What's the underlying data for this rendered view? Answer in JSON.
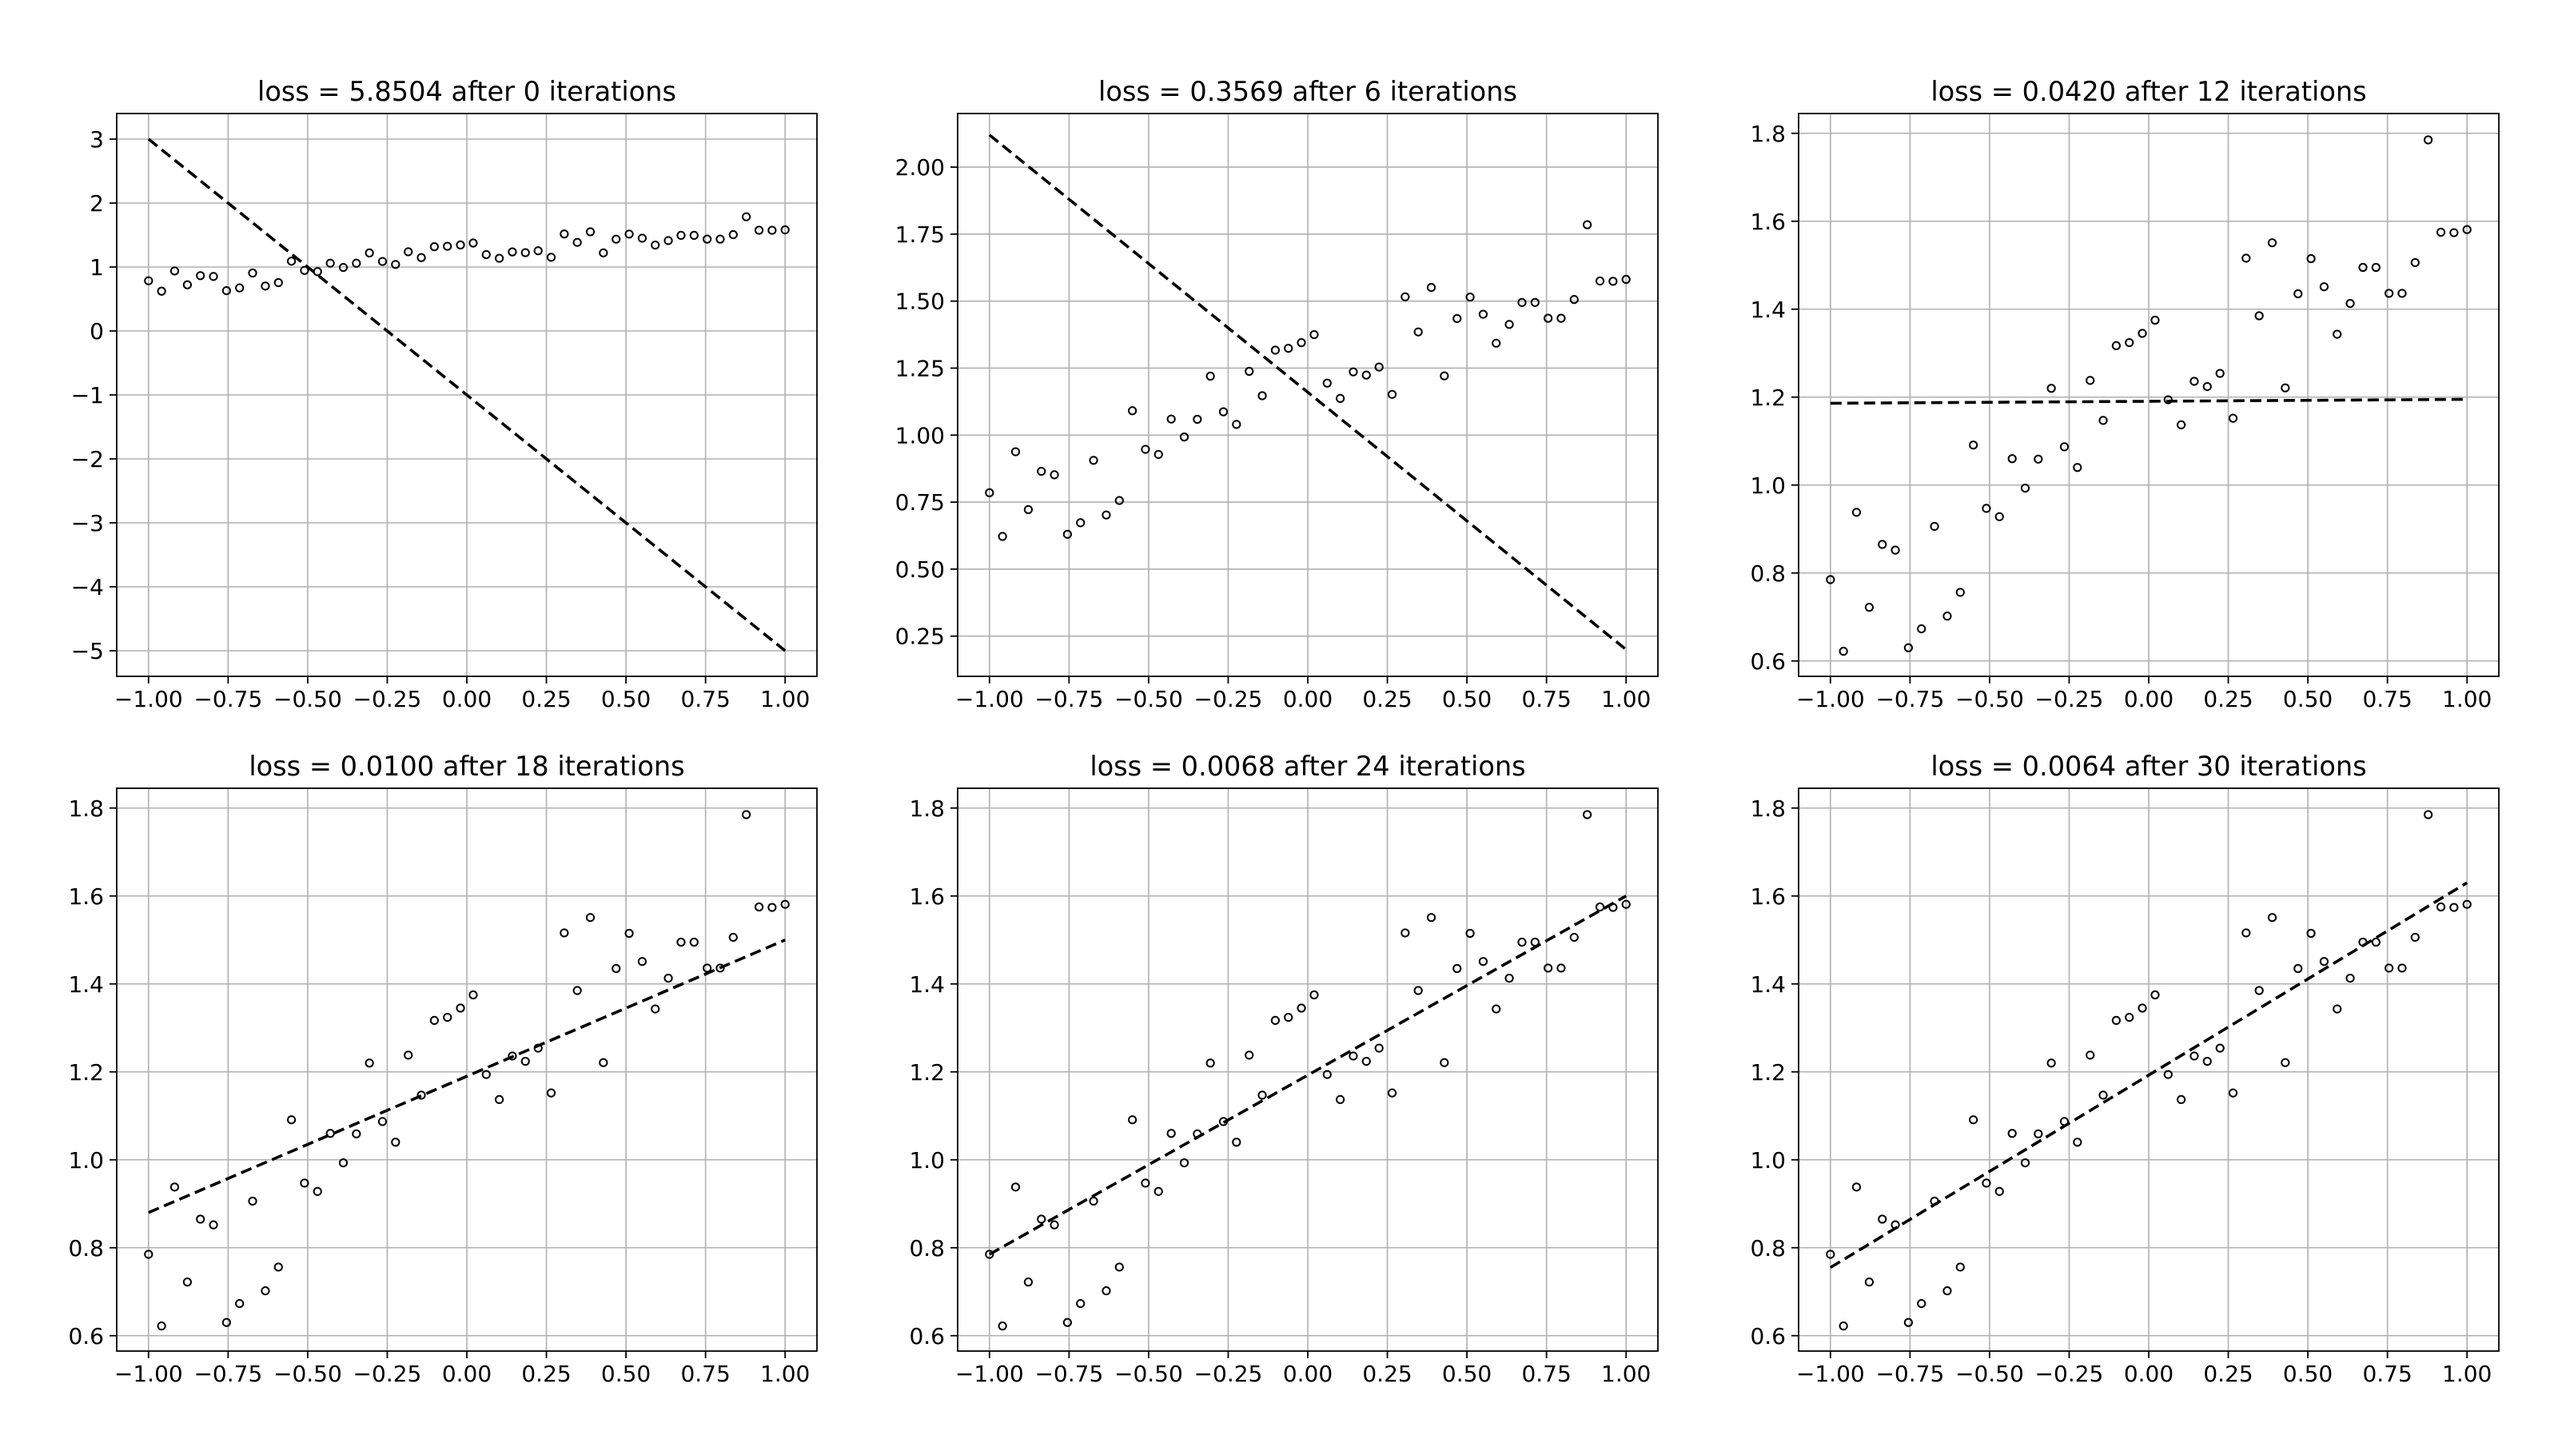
{
  "scatter_points": {
    "x": [
      -1.0,
      -0.959,
      -0.918,
      -0.878,
      -0.837,
      -0.796,
      -0.755,
      -0.714,
      -0.673,
      -0.633,
      -0.592,
      -0.551,
      -0.51,
      -0.469,
      -0.429,
      -0.388,
      -0.347,
      -0.306,
      -0.265,
      -0.224,
      -0.184,
      -0.143,
      -0.102,
      -0.061,
      -0.02,
      0.02,
      0.061,
      0.102,
      0.143,
      0.184,
      0.224,
      0.265,
      0.306,
      0.347,
      0.388,
      0.429,
      0.469,
      0.51,
      0.551,
      0.592,
      0.633,
      0.673,
      0.714,
      0.755,
      0.796,
      0.837,
      0.878,
      0.918,
      0.959,
      1.0
    ],
    "y": [
      0.785,
      0.622,
      0.938,
      0.722,
      0.865,
      0.852,
      0.63,
      0.673,
      0.906,
      0.702,
      0.756,
      1.091,
      0.947,
      0.928,
      1.06,
      0.993,
      1.059,
      1.22,
      1.087,
      1.04,
      1.238,
      1.147,
      1.317,
      1.324,
      1.345,
      1.375,
      1.194,
      1.137,
      1.236,
      1.224,
      1.254,
      1.152,
      1.516,
      1.385,
      1.551,
      1.221,
      1.435,
      1.515,
      1.451,
      1.343,
      1.413,
      1.495,
      1.495,
      1.436,
      1.436,
      1.506,
      1.785,
      1.575,
      1.574,
      1.581
    ]
  },
  "chart_data": [
    {
      "type": "scatter",
      "title": "loss = 5.8504 after 0 iterations",
      "xlim": [
        -1.1,
        1.1
      ],
      "ylim": [
        -5.4,
        3.4
      ],
      "xticks": [
        -1.0,
        -0.75,
        -0.5,
        -0.25,
        0.0,
        0.25,
        0.5,
        0.75,
        1.0
      ],
      "xtick_labels": [
        "−1.00",
        "−0.75",
        "−0.50",
        "−0.25",
        "0.00",
        "0.25",
        "0.50",
        "0.75",
        "1.00"
      ],
      "yticks": [
        -5,
        -4,
        -3,
        -2,
        -1,
        0,
        1,
        2,
        3
      ],
      "ytick_labels": [
        "−5",
        "−4",
        "−3",
        "−2",
        "−1",
        "0",
        "1",
        "2",
        "3"
      ],
      "grid": true,
      "fit_line": {
        "x": [
          -1.0,
          1.0
        ],
        "y": [
          3.0,
          -5.0
        ],
        "style": "dashed"
      }
    },
    {
      "type": "scatter",
      "title": "loss = 0.3569 after 6 iterations",
      "xlim": [
        -1.1,
        1.1
      ],
      "ylim": [
        0.1,
        2.2
      ],
      "xticks": [
        -1.0,
        -0.75,
        -0.5,
        -0.25,
        0.0,
        0.25,
        0.5,
        0.75,
        1.0
      ],
      "xtick_labels": [
        "−1.00",
        "−0.75",
        "−0.50",
        "−0.25",
        "0.00",
        "0.25",
        "0.50",
        "0.75",
        "1.00"
      ],
      "yticks": [
        0.25,
        0.5,
        0.75,
        1.0,
        1.25,
        1.5,
        1.75,
        2.0
      ],
      "ytick_labels": [
        "0.25",
        "0.50",
        "0.75",
        "1.00",
        "1.25",
        "1.50",
        "1.75",
        "2.00"
      ],
      "grid": true,
      "fit_line": {
        "x": [
          -1.0,
          1.0
        ],
        "y": [
          2.12,
          0.2
        ],
        "style": "dashed"
      }
    },
    {
      "type": "scatter",
      "title": "loss = 0.0420 after 12 iterations",
      "xlim": [
        -1.1,
        1.1
      ],
      "ylim": [
        0.565,
        1.845
      ],
      "xticks": [
        -1.0,
        -0.75,
        -0.5,
        -0.25,
        0.0,
        0.25,
        0.5,
        0.75,
        1.0
      ],
      "xtick_labels": [
        "−1.00",
        "−0.75",
        "−0.50",
        "−0.25",
        "0.00",
        "0.25",
        "0.50",
        "0.75",
        "1.00"
      ],
      "yticks": [
        0.6,
        0.8,
        1.0,
        1.2,
        1.4,
        1.6,
        1.8
      ],
      "ytick_labels": [
        "0.6",
        "0.8",
        "1.0",
        "1.2",
        "1.4",
        "1.6",
        "1.8"
      ],
      "grid": true,
      "fit_line": {
        "x": [
          -1.0,
          1.0
        ],
        "y": [
          1.186,
          1.195
        ],
        "style": "dashed"
      }
    },
    {
      "type": "scatter",
      "title": "loss = 0.0100 after 18 iterations",
      "xlim": [
        -1.1,
        1.1
      ],
      "ylim": [
        0.565,
        1.845
      ],
      "xticks": [
        -1.0,
        -0.75,
        -0.5,
        -0.25,
        0.0,
        0.25,
        0.5,
        0.75,
        1.0
      ],
      "xtick_labels": [
        "−1.00",
        "−0.75",
        "−0.50",
        "−0.25",
        "0.00",
        "0.25",
        "0.50",
        "0.75",
        "1.00"
      ],
      "yticks": [
        0.6,
        0.8,
        1.0,
        1.2,
        1.4,
        1.6,
        1.8
      ],
      "ytick_labels": [
        "0.6",
        "0.8",
        "1.0",
        "1.2",
        "1.4",
        "1.6",
        "1.8"
      ],
      "grid": true,
      "fit_line": {
        "x": [
          -1.0,
          1.0
        ],
        "y": [
          0.88,
          1.5
        ],
        "style": "dashed"
      }
    },
    {
      "type": "scatter",
      "title": "loss = 0.0068 after 24 iterations",
      "xlim": [
        -1.1,
        1.1
      ],
      "ylim": [
        0.565,
        1.845
      ],
      "xticks": [
        -1.0,
        -0.75,
        -0.5,
        -0.25,
        0.0,
        0.25,
        0.5,
        0.75,
        1.0
      ],
      "xtick_labels": [
        "−1.00",
        "−0.75",
        "−0.50",
        "−0.25",
        "0.00",
        "0.25",
        "0.50",
        "0.75",
        "1.00"
      ],
      "yticks": [
        0.6,
        0.8,
        1.0,
        1.2,
        1.4,
        1.6,
        1.8
      ],
      "ytick_labels": [
        "0.6",
        "0.8",
        "1.0",
        "1.2",
        "1.4",
        "1.6",
        "1.8"
      ],
      "grid": true,
      "fit_line": {
        "x": [
          -1.0,
          1.0
        ],
        "y": [
          0.785,
          1.6
        ],
        "style": "dashed"
      }
    },
    {
      "type": "scatter",
      "title": "loss = 0.0064 after 30 iterations",
      "xlim": [
        -1.1,
        1.1
      ],
      "ylim": [
        0.565,
        1.845
      ],
      "xticks": [
        -1.0,
        -0.75,
        -0.5,
        -0.25,
        0.0,
        0.25,
        0.5,
        0.75,
        1.0
      ],
      "xtick_labels": [
        "−1.00",
        "−0.75",
        "−0.50",
        "−0.25",
        "0.00",
        "0.25",
        "0.50",
        "0.75",
        "1.00"
      ],
      "yticks": [
        0.6,
        0.8,
        1.0,
        1.2,
        1.4,
        1.6,
        1.8
      ],
      "ytick_labels": [
        "0.6",
        "0.8",
        "1.0",
        "1.2",
        "1.4",
        "1.6",
        "1.8"
      ],
      "grid": true,
      "fit_line": {
        "x": [
          -1.0,
          1.0
        ],
        "y": [
          0.755,
          1.63
        ],
        "style": "dashed"
      }
    }
  ]
}
